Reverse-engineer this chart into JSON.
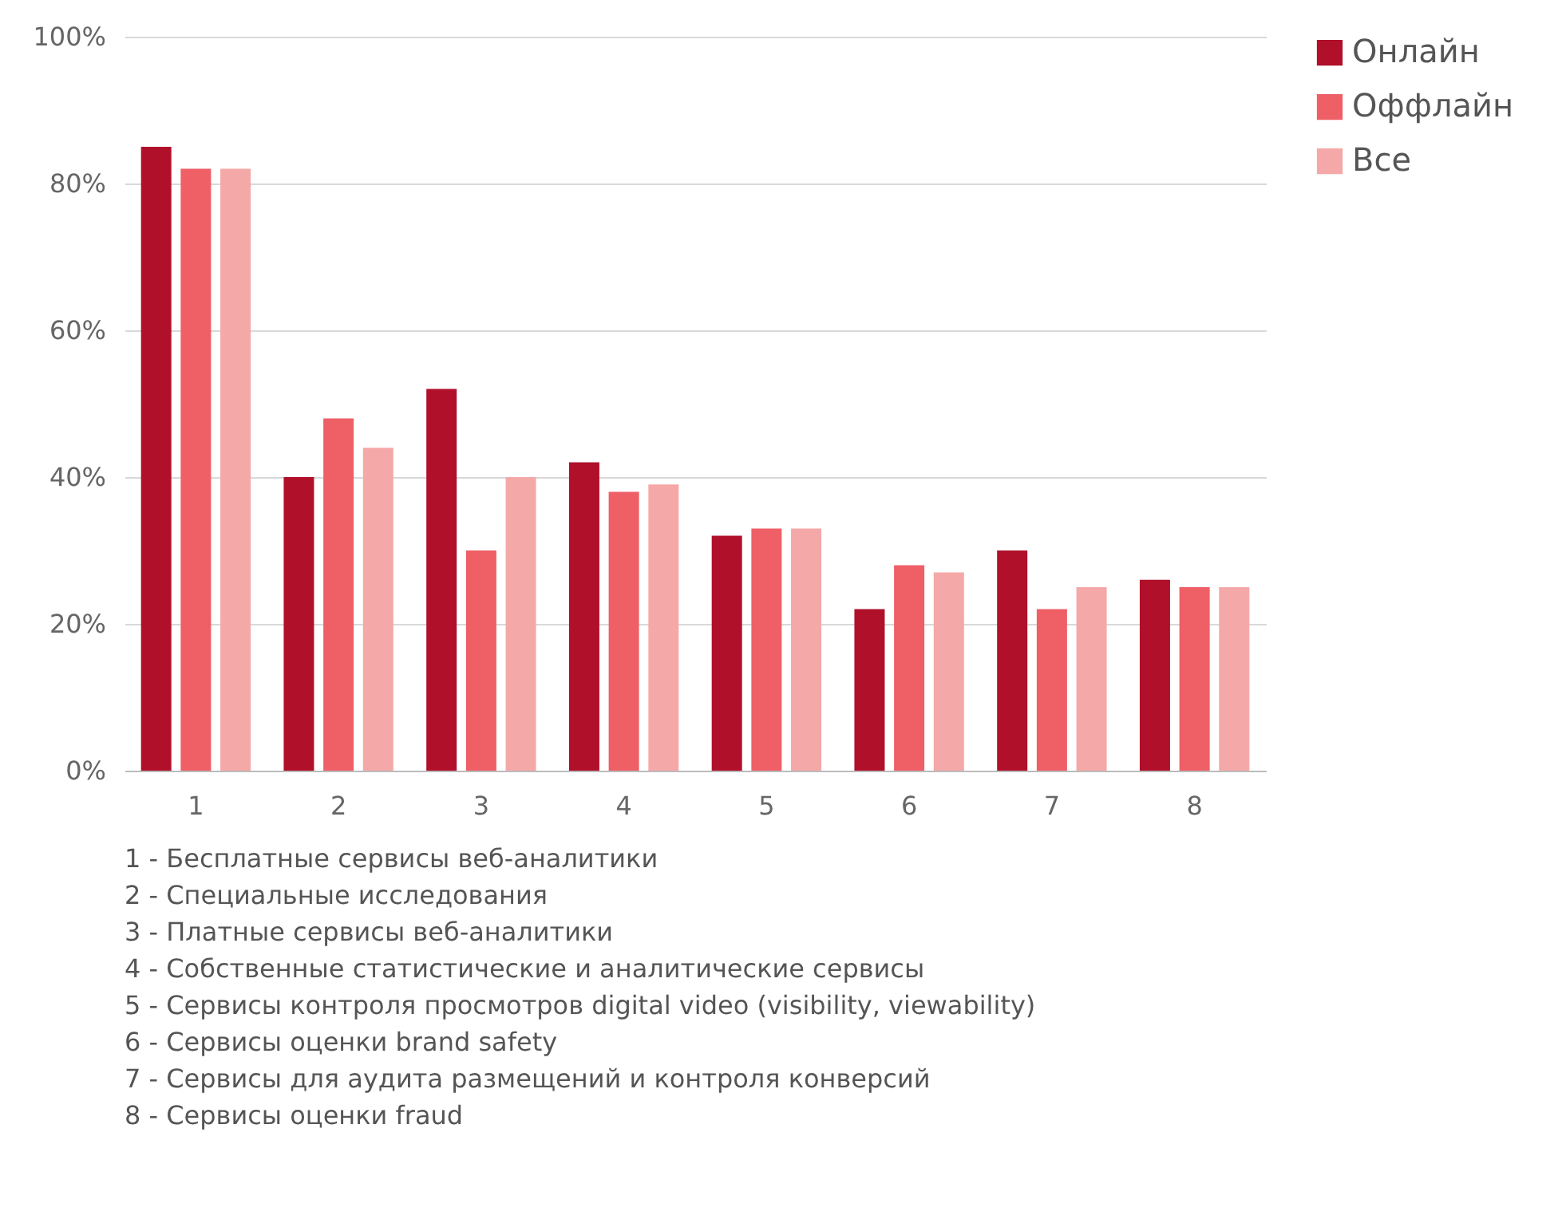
{
  "chart_data": {
    "type": "bar",
    "categories": [
      "1",
      "2",
      "3",
      "4",
      "5",
      "6",
      "7",
      "8"
    ],
    "series": [
      {
        "name": "Онлайн",
        "color": "#b0102a",
        "values": [
          85,
          40,
          52,
          42,
          32,
          22,
          30,
          26
        ]
      },
      {
        "name": "Оффлайн",
        "color": "#ee5f66",
        "values": [
          82,
          48,
          30,
          38,
          33,
          28,
          22,
          25
        ]
      },
      {
        "name": "Все",
        "color": "#f5a8a8",
        "values": [
          82,
          44,
          40,
          39,
          33,
          27,
          25,
          25
        ]
      }
    ],
    "ylim": [
      0,
      100
    ],
    "yticks": [
      {
        "value": 0,
        "label": "0%"
      },
      {
        "value": 20,
        "label": "20%"
      },
      {
        "value": 40,
        "label": "40%"
      },
      {
        "value": 60,
        "label": "60%"
      },
      {
        "value": 80,
        "label": "80%"
      },
      {
        "value": 100,
        "label": "100%"
      }
    ],
    "grid": "y",
    "legend": "top right",
    "annotations": [
      "1 - Бесплатные сервисы веб-аналитики",
      "2 - Специальные исследования",
      "3 - Платные сервисы веб-аналитики",
      "4 - Собственные статистические и аналитические сервисы",
      "5 - Сервисы контроля просмотров digital video (visibility, viewability)",
      "6 - Сервисы оценки brand safety",
      "7 - Сервисы для аудита размещений и контроля конверсий",
      "8 - Сервисы оценки fraud"
    ]
  }
}
